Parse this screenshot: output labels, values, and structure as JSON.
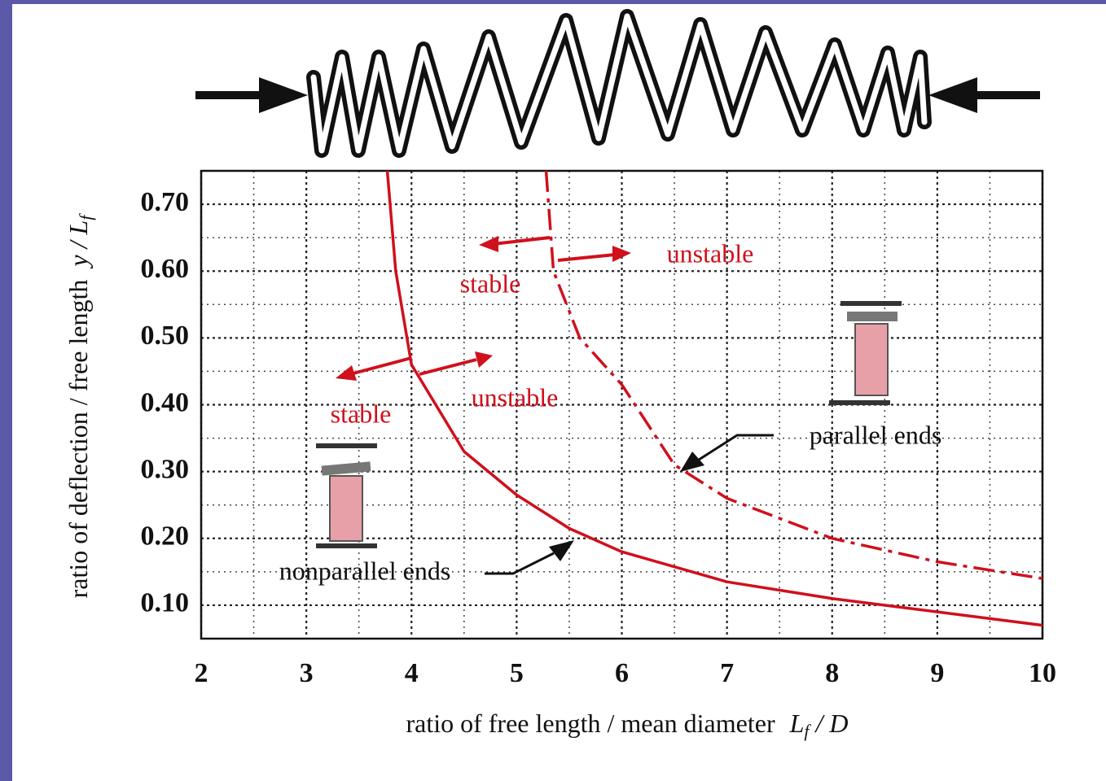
{
  "chart_data": {
    "type": "line",
    "x_label": "ratio of free length / mean diameter",
    "x_label_symbol": "L",
    "x_label_sub": "f",
    "x_label_tail": " / D",
    "y_label": "ratio of deflection / free length",
    "y_label_symbol": "y / L",
    "y_label_sub": "f",
    "xlim": [
      2,
      10
    ],
    "ylim": [
      0.05,
      0.75
    ],
    "xticks": [
      2,
      3,
      4,
      5,
      6,
      7,
      8,
      9,
      10
    ],
    "yticks": [
      {
        "value": 0.1,
        "label": "0.10"
      },
      {
        "value": 0.2,
        "label": "0.20"
      },
      {
        "value": 0.3,
        "label": "0.30"
      },
      {
        "value": 0.4,
        "label": "0.40"
      },
      {
        "value": 0.5,
        "label": "0.50"
      },
      {
        "value": 0.6,
        "label": "0.60"
      },
      {
        "value": 0.7,
        "label": "0.70"
      }
    ],
    "xminorticks": [
      2.5,
      3.5,
      4.5,
      5.5,
      6.5,
      7.5,
      8.5,
      9.5
    ],
    "yminorticks": [
      0.15,
      0.25,
      0.35,
      0.45,
      0.55,
      0.65
    ],
    "grid": true,
    "series": [
      {
        "name": "nonparallel ends",
        "color": "#d0101c",
        "style": "solid",
        "x": [
          3.77,
          3.85,
          4.0,
          4.5,
          5.0,
          5.5,
          6.0,
          7.0,
          8.0,
          9.0,
          10.0
        ],
        "values": [
          0.75,
          0.6,
          0.46,
          0.33,
          0.265,
          0.215,
          0.18,
          0.135,
          0.11,
          0.09,
          0.07
        ]
      },
      {
        "name": "parallel ends",
        "color": "#d0101c",
        "style": "dashdot",
        "x": [
          5.28,
          5.35,
          5.6,
          6.0,
          6.5,
          7.0,
          8.0,
          9.0,
          10.0
        ],
        "values": [
          0.75,
          0.6,
          0.5,
          0.43,
          0.31,
          0.26,
          0.2,
          0.165,
          0.14
        ]
      }
    ],
    "annotations": [
      "stable",
      "unstable",
      "stable",
      "unstable"
    ]
  }
}
